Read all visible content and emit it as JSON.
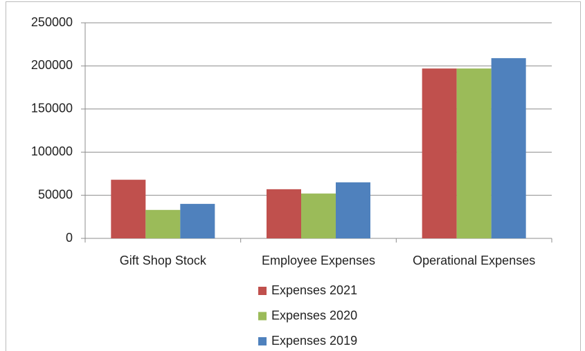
{
  "chart_data": {
    "type": "bar",
    "categories": [
      "Gift Shop Stock",
      "Employee Expenses",
      "Operational Expenses"
    ],
    "series": [
      {
        "name": "Expenses 2021",
        "color": "#c0504d",
        "values": [
          68000,
          57000,
          197000
        ]
      },
      {
        "name": "Expenses 2020",
        "color": "#9bbb59",
        "values": [
          33000,
          52000,
          197000
        ]
      },
      {
        "name": "Expenses 2019",
        "color": "#4f81bd",
        "values": [
          40000,
          65000,
          209000
        ]
      }
    ],
    "ylim": [
      0,
      250000
    ],
    "yticks": [
      0,
      50000,
      100000,
      150000,
      200000,
      250000
    ],
    "grid": true,
    "legend": "bottom"
  }
}
